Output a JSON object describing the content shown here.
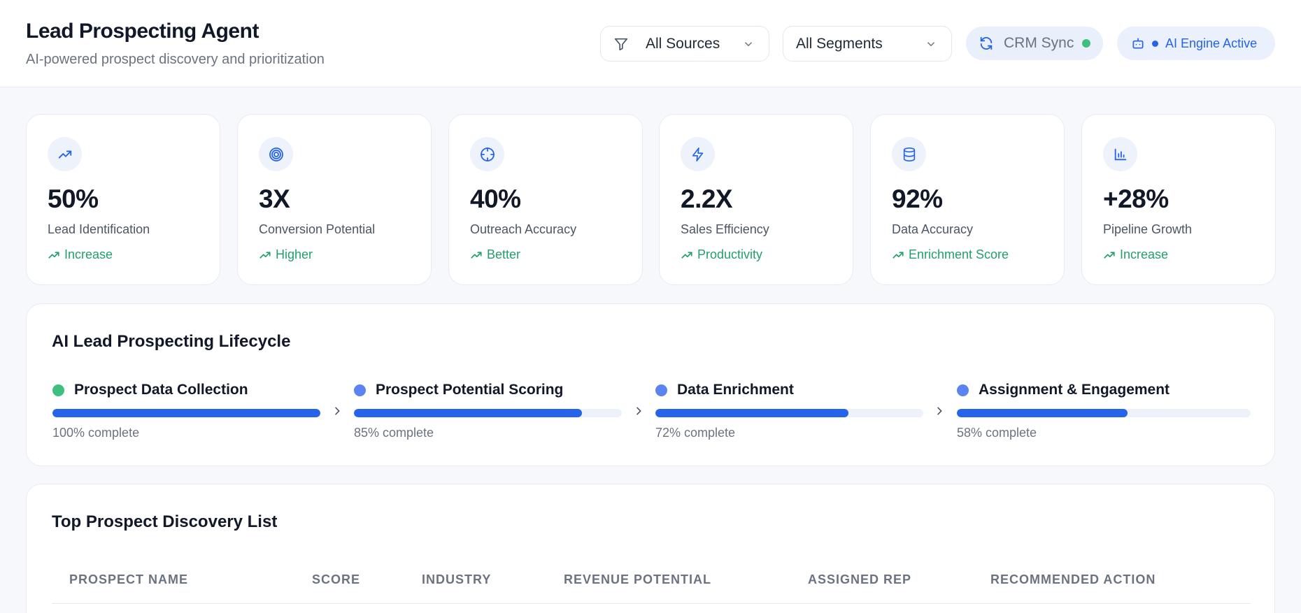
{
  "header": {
    "title": "Lead Prospecting Agent",
    "subtitle": "AI-powered prospect discovery and prioritization",
    "sources_filter": "All Sources",
    "segments_filter": "All Segments",
    "crm_sync": "CRM Sync",
    "ai_engine": "AI Engine Active"
  },
  "kpis": [
    {
      "icon": "trending-up-icon",
      "value": "50%",
      "label": "Lead Identification",
      "trend": "Increase"
    },
    {
      "icon": "target-icon",
      "value": "3X",
      "label": "Conversion Potential",
      "trend": "Higher"
    },
    {
      "icon": "crosshair-icon",
      "value": "40%",
      "label": "Outreach Accuracy",
      "trend": "Better"
    },
    {
      "icon": "zap-icon",
      "value": "2.2X",
      "label": "Sales Efficiency",
      "trend": "Productivity"
    },
    {
      "icon": "database-icon",
      "value": "92%",
      "label": "Data Accuracy",
      "trend": "Enrichment Score"
    },
    {
      "icon": "bar-chart-icon",
      "value": "+28%",
      "label": "Pipeline Growth",
      "trend": "Increase"
    }
  ],
  "lifecycle": {
    "title": "AI Lead Prospecting Lifecycle",
    "stages": [
      {
        "name": "Prospect Data Collection",
        "progress": 100,
        "complete_text": "100% complete",
        "status_color": "#3fbf7f"
      },
      {
        "name": "Prospect Potential Scoring",
        "progress": 85,
        "complete_text": "85% complete",
        "status_color": "#5b84f0"
      },
      {
        "name": "Data Enrichment",
        "progress": 72,
        "complete_text": "72% complete",
        "status_color": "#5b84f0"
      },
      {
        "name": "Assignment & Engagement",
        "progress": 58,
        "complete_text": "58% complete",
        "status_color": "#5b84f0"
      }
    ]
  },
  "prospects": {
    "title": "Top Prospect Discovery List",
    "columns": [
      "PROSPECT NAME",
      "SCORE",
      "INDUSTRY",
      "REVENUE POTENTIAL",
      "ASSIGNED REP",
      "RECOMMENDED ACTION"
    ]
  },
  "colors": {
    "accent": "#2563eb",
    "success": "#22a06b",
    "sync_dot": "#3fbf7f"
  }
}
